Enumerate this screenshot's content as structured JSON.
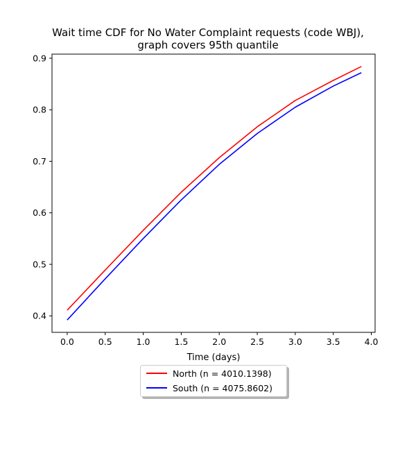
{
  "chart_data": {
    "type": "line",
    "title_line1": "Wait time CDF for No Water Complaint  requests (code WBJ),",
    "title_line2": "graph covers 95th quantile",
    "xlabel": "Time (days)",
    "ylabel": "",
    "xlim": [
      -0.2,
      4.05
    ],
    "ylim": [
      0.368,
      0.908
    ],
    "xticks": [
      "0.0",
      "0.5",
      "1.0",
      "1.5",
      "2.0",
      "2.5",
      "3.0",
      "3.5",
      "4.0"
    ],
    "yticks": [
      "0.4",
      "0.5",
      "0.6",
      "0.7",
      "0.8",
      "0.9"
    ],
    "grid": false,
    "legend_position": "below center",
    "series": [
      {
        "name": "North (n = 4010.1398)",
        "color": "#ff0000",
        "x": [
          0.0,
          0.5,
          1.0,
          1.5,
          2.0,
          2.5,
          3.0,
          3.5,
          3.87
        ],
        "y": [
          0.411,
          0.489,
          0.566,
          0.64,
          0.707,
          0.767,
          0.818,
          0.857,
          0.884
        ]
      },
      {
        "name": "South (n = 4075.8602)",
        "color": "#0000ff",
        "x": [
          0.0,
          0.5,
          1.0,
          1.5,
          2.0,
          2.5,
          3.0,
          3.5,
          3.87
        ],
        "y": [
          0.392,
          0.472,
          0.55,
          0.625,
          0.694,
          0.754,
          0.805,
          0.846,
          0.872
        ]
      }
    ]
  }
}
